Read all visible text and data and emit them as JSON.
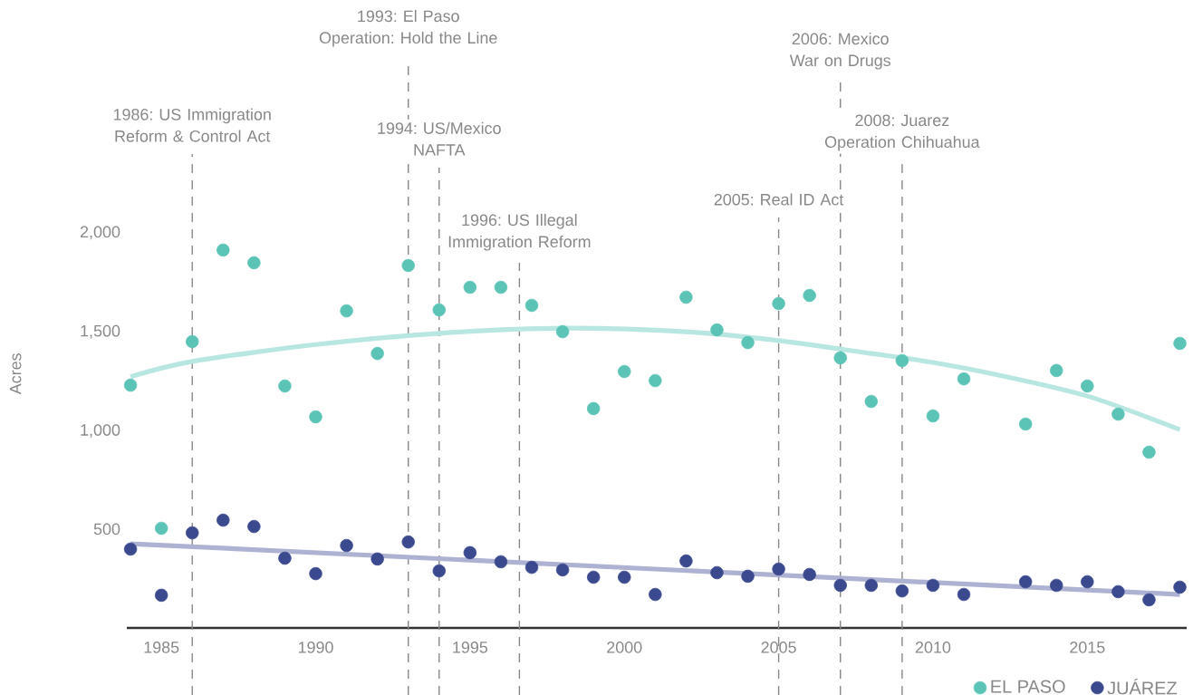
{
  "chart_data": {
    "type": "scatter",
    "ylabel": "Acres",
    "legend": "bottom right",
    "x": [
      1984,
      1985,
      1986,
      1987,
      1988,
      1989,
      1990,
      1991,
      1992,
      1993,
      1994,
      1995,
      1996,
      1997,
      1998,
      1999,
      2000,
      2001,
      2002,
      2003,
      2004,
      2005,
      2006,
      2007,
      2008,
      2009,
      2010,
      2011,
      2012,
      2013,
      2014,
      2015,
      2016,
      2017,
      2018
    ],
    "series": [
      {
        "name": "EL PASO",
        "color": "#5bc4b6",
        "marker": "circle",
        "values": [
          1225,
          503,
          1445,
          1907,
          1843,
          1221,
          1065,
          1600,
          1385,
          1829,
          1605,
          1719,
          1719,
          1628,
          1495,
          1107,
          1294,
          1248,
          1669,
          1504,
          1440,
          1637,
          1678,
          1363,
          1143,
          1349,
          1070,
          1257,
          null,
          1029,
          1299,
          1221,
          1079,
          887,
          1436
        ]
      },
      {
        "name": "JUÁREZ",
        "color": "#3b4a8e",
        "marker": "circle",
        "values": [
          398,
          165,
          480,
          544,
          512,
          352,
          274,
          416,
          348,
          434,
          288,
          380,
          334,
          306,
          293,
          256,
          256,
          169,
          338,
          279,
          261,
          297,
          270,
          215,
          215,
          187,
          215,
          169,
          null,
          233,
          215,
          233,
          183,
          142,
          206
        ]
      },
      {
        "type": "line",
        "color": "#b8e6e1",
        "marker": "none",
        "x": [
          1984,
          1986,
          1990,
          1994,
          1998,
          2002,
          2005,
          2008,
          2010,
          2012,
          2015,
          2018
        ],
        "values": [
          1268,
          1345,
          1430,
          1487,
          1513,
          1495,
          1450,
          1385,
          1340,
          1280,
          1170,
          1001
        ]
      },
      {
        "type": "line",
        "color": "#aeb2d2",
        "marker": "none",
        "x": [
          1984,
          2018
        ],
        "values": [
          425,
          169
        ]
      }
    ],
    "xlim": [
      1983.88,
      2018.22
    ],
    "ylim": [
      0,
      2070
    ],
    "xticks": [
      1985,
      1990,
      1995,
      2000,
      2005,
      2010,
      2015
    ],
    "yticks": [
      {
        "value": 500,
        "label": "500"
      },
      {
        "value": 1000,
        "label": "1,000"
      },
      {
        "value": 1500,
        "label": "1,500"
      },
      {
        "value": 2000,
        "label": "2,000"
      }
    ],
    "ref_lines": [
      {
        "axis": "x",
        "value": 1986,
        "label": "1986: US Immigration Reform & Control Act",
        "color": "#888888",
        "line_style": "dashed"
      },
      {
        "axis": "x",
        "value": 1993,
        "label": "1993: El Paso Operation: Hold the Line",
        "color": "#888888",
        "line_style": "dashed"
      },
      {
        "axis": "x",
        "value": 1994,
        "label": "1994: US/Mexico NAFTA",
        "color": "#888888",
        "line_style": "dashed"
      },
      {
        "axis": "x",
        "value": 1996.6,
        "label": "1996: US Illegal Immigration Reform",
        "color": "#888888",
        "line_style": "dashed"
      },
      {
        "axis": "x",
        "value": 2005,
        "label": "2005: Real ID Act",
        "color": "#888888",
        "line_style": "dashed"
      },
      {
        "axis": "x",
        "value": 2007,
        "label": "2006: Mexico War on Drugs",
        "color": "#888888",
        "line_style": "dashed"
      },
      {
        "axis": "x",
        "value": 2009,
        "label": "2008: Juarez Operation Chihuahua",
        "color": "#888888",
        "line_style": "dashed"
      }
    ]
  }
}
